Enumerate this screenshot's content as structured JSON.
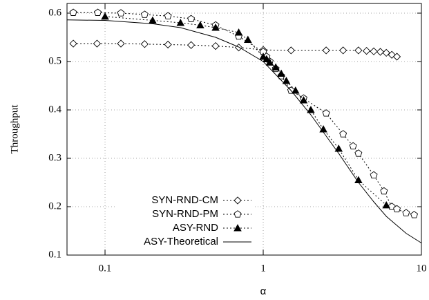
{
  "chart_data": {
    "type": "line",
    "x_label": "α",
    "y_label": "Throughput",
    "xscale": "log",
    "xlim": [
      0.0575,
      10
    ],
    "xticks": [
      0.1,
      1,
      10
    ],
    "ylim": [
      0.1,
      0.62
    ],
    "yticks": [
      0.1,
      0.2,
      0.3,
      0.4,
      0.5,
      0.6
    ],
    "grid": true,
    "legend": "lower left",
    "series": [
      {
        "name": "SYN-RND-CM",
        "color": "#000000",
        "marker": "diamond",
        "dash": "dotted",
        "x": [
          0.063,
          0.089,
          0.126,
          0.178,
          0.25,
          0.35,
          0.5,
          0.7,
          1.0,
          1.5,
          2.5,
          3.2,
          4,
          4.5,
          5,
          5.5,
          6,
          6.5,
          7
        ],
        "values": [
          0.537,
          0.537,
          0.537,
          0.536,
          0.535,
          0.534,
          0.532,
          0.529,
          0.524,
          0.523,
          0.523,
          0.523,
          0.523,
          0.522,
          0.521,
          0.52,
          0.518,
          0.514,
          0.51
        ]
      },
      {
        "name": "SYN-RND-PM",
        "color": "#000000",
        "marker": "pentagon",
        "dash": "dotted",
        "x": [
          0.063,
          0.09,
          0.126,
          0.178,
          0.25,
          0.35,
          0.5,
          0.7,
          1.0,
          1.05,
          1.1,
          1.2,
          1.3,
          1.5,
          1.8,
          2.5,
          3.2,
          3.7,
          4,
          5,
          5.8,
          6.5,
          7,
          8,
          9
        ],
        "values": [
          0.601,
          0.601,
          0.6,
          0.597,
          0.594,
          0.588,
          0.575,
          0.552,
          0.52,
          0.51,
          0.5,
          0.485,
          0.47,
          0.44,
          0.424,
          0.393,
          0.35,
          0.325,
          0.31,
          0.265,
          0.232,
          0.2,
          0.195,
          0.187,
          0.183
        ]
      },
      {
        "name": "ASY-RND",
        "color": "#000000",
        "marker": "triangle",
        "dash": "dotted",
        "x": [
          0.1,
          0.2,
          0.3,
          0.4,
          0.5,
          0.7,
          0.8,
          1.0,
          1.05,
          1.1,
          1.2,
          1.3,
          1.4,
          1.6,
          1.8,
          2.0,
          2.4,
          3,
          4,
          6
        ],
        "values": [
          0.593,
          0.585,
          0.58,
          0.575,
          0.57,
          0.56,
          0.545,
          0.51,
          0.505,
          0.498,
          0.488,
          0.475,
          0.46,
          0.44,
          0.42,
          0.4,
          0.36,
          0.32,
          0.255,
          0.203
        ]
      },
      {
        "name": "ASY-Theoretical",
        "color": "#000000",
        "marker": "none",
        "dash": "solid",
        "x": [
          0.0575,
          0.1,
          0.2,
          0.3,
          0.5,
          0.7,
          1,
          1.5,
          2,
          3,
          4,
          5,
          6,
          8,
          10
        ],
        "values": [
          0.586,
          0.585,
          0.578,
          0.57,
          0.55,
          0.53,
          0.5,
          0.44,
          0.39,
          0.31,
          0.25,
          0.21,
          0.18,
          0.145,
          0.125
        ]
      }
    ]
  }
}
